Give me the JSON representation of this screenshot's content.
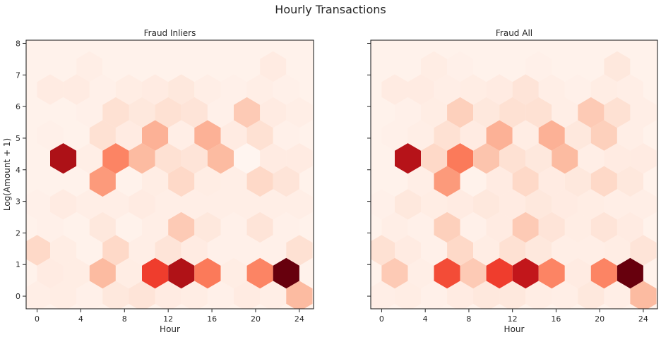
{
  "suptitle": "Hourly Transactions",
  "chart_data": [
    {
      "type": "heatmap",
      "subtype": "hexbin",
      "title": "Fraud Inliers",
      "xlabel": "Hour",
      "ylabel": "Log(Amount + 1)",
      "xlim": [
        -1,
        25.3
      ],
      "ylim": [
        -0.4,
        8.1
      ],
      "xticks": [
        0,
        4,
        8,
        12,
        16,
        20,
        24
      ],
      "yticks": [
        0,
        1,
        2,
        3,
        4,
        5,
        6,
        7,
        8
      ],
      "colormap": "Reds",
      "grid": false,
      "hex_size": 1.2,
      "value_scale": "relative intensity 0-1",
      "cells": [
        {
          "x": 0.0,
          "y": 0,
          "v": 0.04
        },
        {
          "x": 2.4,
          "y": 0,
          "v": 0.05
        },
        {
          "x": 4.8,
          "y": 0,
          "v": 0.03
        },
        {
          "x": 7.2,
          "y": 0,
          "v": 0.08
        },
        {
          "x": 9.6,
          "y": 0,
          "v": 0.1
        },
        {
          "x": 12.0,
          "y": 0,
          "v": 0.06
        },
        {
          "x": 14.4,
          "y": 0,
          "v": 0.05
        },
        {
          "x": 16.8,
          "y": 0,
          "v": 0.03
        },
        {
          "x": 19.2,
          "y": 0,
          "v": 0.06
        },
        {
          "x": 21.6,
          "y": 0,
          "v": 0.04
        },
        {
          "x": 24.0,
          "y": 0,
          "v": 0.25
        },
        {
          "x": 1.2,
          "y": 1,
          "v": 0.06
        },
        {
          "x": 3.6,
          "y": 1,
          "v": 0.05
        },
        {
          "x": 6.0,
          "y": 1,
          "v": 0.25
        },
        {
          "x": 8.4,
          "y": 1,
          "v": 0.05
        },
        {
          "x": 10.8,
          "y": 1,
          "v": 0.62
        },
        {
          "x": 13.2,
          "y": 1,
          "v": 0.84
        },
        {
          "x": 15.6,
          "y": 1,
          "v": 0.45
        },
        {
          "x": 18.0,
          "y": 1,
          "v": 0.05
        },
        {
          "x": 20.4,
          "y": 1,
          "v": 0.42
        },
        {
          "x": 22.8,
          "y": 1,
          "v": 1.0
        },
        {
          "x": 0.0,
          "y": 2,
          "v": 0.15
        },
        {
          "x": 2.4,
          "y": 2,
          "v": 0.05
        },
        {
          "x": 4.8,
          "y": 2,
          "v": 0.02
        },
        {
          "x": 7.2,
          "y": 2,
          "v": 0.15
        },
        {
          "x": 9.6,
          "y": 2,
          "v": 0.04
        },
        {
          "x": 12.0,
          "y": 2,
          "v": 0.1
        },
        {
          "x": 14.4,
          "y": 2,
          "v": 0.06
        },
        {
          "x": 16.8,
          "y": 2,
          "v": 0.03
        },
        {
          "x": 19.2,
          "y": 2,
          "v": 0.03
        },
        {
          "x": 21.6,
          "y": 2,
          "v": 0.03
        },
        {
          "x": 24.0,
          "y": 2,
          "v": 0.12
        },
        {
          "x": 1.2,
          "y": 3,
          "v": 0.03
        },
        {
          "x": 3.6,
          "y": 3,
          "v": 0.02
        },
        {
          "x": 6.0,
          "y": 3,
          "v": 0.08
        },
        {
          "x": 8.4,
          "y": 3,
          "v": 0.02
        },
        {
          "x": 10.8,
          "y": 3,
          "v": 0.04
        },
        {
          "x": 13.2,
          "y": 3,
          "v": 0.2
        },
        {
          "x": 15.6,
          "y": 3,
          "v": 0.08
        },
        {
          "x": 18.0,
          "y": 3,
          "v": 0.03
        },
        {
          "x": 20.4,
          "y": 3,
          "v": 0.1
        },
        {
          "x": 22.8,
          "y": 3,
          "v": 0.03
        },
        {
          "x": 0.0,
          "y": 4,
          "v": 0.03
        },
        {
          "x": 2.4,
          "y": 4,
          "v": 0.06
        },
        {
          "x": 4.8,
          "y": 4,
          "v": 0.04
        },
        {
          "x": 7.2,
          "y": 4,
          "v": 0.04
        },
        {
          "x": 9.6,
          "y": 4,
          "v": 0.06
        },
        {
          "x": 12.0,
          "y": 4,
          "v": 0.04
        },
        {
          "x": 14.4,
          "y": 4,
          "v": 0.04
        },
        {
          "x": 16.8,
          "y": 4,
          "v": 0.04
        },
        {
          "x": 19.2,
          "y": 4,
          "v": 0.04
        },
        {
          "x": 21.6,
          "y": 4,
          "v": 0.04
        },
        {
          "x": 24.0,
          "y": 4,
          "v": 0.04
        },
        {
          "x": 1.2,
          "y": 5,
          "v": 0.02
        },
        {
          "x": 3.6,
          "y": 5,
          "v": 0.02
        },
        {
          "x": 6.0,
          "y": 5,
          "v": 0.35
        },
        {
          "x": 8.4,
          "y": 5,
          "v": 0.02
        },
        {
          "x": 10.8,
          "y": 5,
          "v": 0.05
        },
        {
          "x": 13.2,
          "y": 5,
          "v": 0.15
        },
        {
          "x": 15.6,
          "y": 5,
          "v": 0.05
        },
        {
          "x": 18.0,
          "y": 5,
          "v": 0.04
        },
        {
          "x": 20.4,
          "y": 5,
          "v": 0.15
        },
        {
          "x": 22.8,
          "y": 5,
          "v": 0.1
        },
        {
          "x": 0.0,
          "y": 6,
          "v": 0.02
        },
        {
          "x": 2.4,
          "y": 6,
          "v": 0.85
        },
        {
          "x": 4.8,
          "y": 6,
          "v": 0.04
        },
        {
          "x": 7.2,
          "y": 6,
          "v": 0.42
        },
        {
          "x": 9.6,
          "y": 6,
          "v": 0.25
        },
        {
          "x": 12.0,
          "y": 6,
          "v": 0.12
        },
        {
          "x": 14.4,
          "y": 6,
          "v": 0.1
        },
        {
          "x": 16.8,
          "y": 6,
          "v": 0.25
        },
        {
          "x": 19.2,
          "y": 6,
          "v": 0.0
        },
        {
          "x": 21.6,
          "y": 6,
          "v": 0.06
        },
        {
          "x": 24.0,
          "y": 6,
          "v": 0.06
        },
        {
          "x": 1.2,
          "y": 7,
          "v": 0.03
        },
        {
          "x": 3.6,
          "y": 7,
          "v": 0.02
        },
        {
          "x": 6.0,
          "y": 7,
          "v": 0.12
        },
        {
          "x": 8.4,
          "y": 7,
          "v": 0.06
        },
        {
          "x": 10.8,
          "y": 7,
          "v": 0.28
        },
        {
          "x": 13.2,
          "y": 7,
          "v": 0.04
        },
        {
          "x": 15.6,
          "y": 7,
          "v": 0.28
        },
        {
          "x": 18.0,
          "y": 7,
          "v": 0.06
        },
        {
          "x": 20.4,
          "y": 7,
          "v": 0.12
        },
        {
          "x": 22.8,
          "y": 7,
          "v": 0.03
        },
        {
          "x": 0.0,
          "y": 8,
          "v": 0.02
        },
        {
          "x": 2.4,
          "y": 8,
          "v": 0.02
        },
        {
          "x": 4.8,
          "y": 8,
          "v": 0.03
        },
        {
          "x": 7.2,
          "y": 8,
          "v": 0.12
        },
        {
          "x": 9.6,
          "y": 8,
          "v": 0.08
        },
        {
          "x": 12.0,
          "y": 8,
          "v": 0.12
        },
        {
          "x": 14.4,
          "y": 8,
          "v": 0.1
        },
        {
          "x": 16.8,
          "y": 8,
          "v": 0.03
        },
        {
          "x": 19.2,
          "y": 8,
          "v": 0.2
        },
        {
          "x": 21.6,
          "y": 8,
          "v": 0.06
        },
        {
          "x": 24.0,
          "y": 8,
          "v": 0.04
        },
        {
          "x": 1.2,
          "y": 9,
          "v": 0.06
        },
        {
          "x": 3.6,
          "y": 9,
          "v": 0.06
        },
        {
          "x": 6.0,
          "y": 9,
          "v": 0.03
        },
        {
          "x": 8.4,
          "y": 9,
          "v": 0.05
        },
        {
          "x": 10.8,
          "y": 9,
          "v": 0.06
        },
        {
          "x": 13.2,
          "y": 9,
          "v": 0.08
        },
        {
          "x": 15.6,
          "y": 9,
          "v": 0.04
        },
        {
          "x": 18.0,
          "y": 9,
          "v": 0.03
        },
        {
          "x": 20.4,
          "y": 9,
          "v": 0.04
        },
        {
          "x": 22.8,
          "y": 9,
          "v": 0.03
        },
        {
          "x": 0.0,
          "y": 10,
          "v": 0.02
        },
        {
          "x": 2.4,
          "y": 10,
          "v": 0.02
        },
        {
          "x": 4.8,
          "y": 10,
          "v": 0.04
        },
        {
          "x": 7.2,
          "y": 10,
          "v": 0.02
        },
        {
          "x": 9.6,
          "y": 10,
          "v": 0.02
        },
        {
          "x": 12.0,
          "y": 10,
          "v": 0.02
        },
        {
          "x": 14.4,
          "y": 10,
          "v": 0.02
        },
        {
          "x": 16.8,
          "y": 10,
          "v": 0.02
        },
        {
          "x": 19.2,
          "y": 10,
          "v": 0.02
        },
        {
          "x": 21.6,
          "y": 10,
          "v": 0.06
        },
        {
          "x": 24.0,
          "y": 10,
          "v": 0.02
        }
      ]
    },
    {
      "type": "heatmap",
      "subtype": "hexbin",
      "title": "Fraud All",
      "xlabel": "Hour",
      "ylabel": "",
      "xlim": [
        -1,
        25.3
      ],
      "ylim": [
        -0.4,
        8.1
      ],
      "xticks": [
        0,
        4,
        8,
        12,
        16,
        20,
        24
      ],
      "yticks": [
        0,
        1,
        2,
        3,
        4,
        5,
        6,
        7,
        8
      ],
      "colormap": "Reds",
      "grid": false,
      "hex_size": 1.2,
      "value_scale": "relative intensity 0-1",
      "cells": [
        {
          "x": 0.0,
          "y": 0,
          "v": 0.04
        },
        {
          "x": 2.4,
          "y": 0,
          "v": 0.05
        },
        {
          "x": 4.8,
          "y": 0,
          "v": 0.03
        },
        {
          "x": 7.2,
          "y": 0,
          "v": 0.06
        },
        {
          "x": 9.6,
          "y": 0,
          "v": 0.08
        },
        {
          "x": 12.0,
          "y": 0,
          "v": 0.08
        },
        {
          "x": 14.4,
          "y": 0,
          "v": 0.05
        },
        {
          "x": 16.8,
          "y": 0,
          "v": 0.04
        },
        {
          "x": 19.2,
          "y": 0,
          "v": 0.08
        },
        {
          "x": 21.6,
          "y": 0,
          "v": 0.04
        },
        {
          "x": 24.0,
          "y": 0,
          "v": 0.25
        },
        {
          "x": 1.2,
          "y": 1,
          "v": 0.2
        },
        {
          "x": 3.6,
          "y": 1,
          "v": 0.04
        },
        {
          "x": 6.0,
          "y": 1,
          "v": 0.58
        },
        {
          "x": 8.4,
          "y": 1,
          "v": 0.2
        },
        {
          "x": 10.8,
          "y": 1,
          "v": 0.62
        },
        {
          "x": 13.2,
          "y": 1,
          "v": 0.78
        },
        {
          "x": 15.6,
          "y": 1,
          "v": 0.42
        },
        {
          "x": 18.0,
          "y": 1,
          "v": 0.06
        },
        {
          "x": 20.4,
          "y": 1,
          "v": 0.42
        },
        {
          "x": 22.8,
          "y": 1,
          "v": 1.0
        },
        {
          "x": 0.0,
          "y": 2,
          "v": 0.12
        },
        {
          "x": 2.4,
          "y": 2,
          "v": 0.06
        },
        {
          "x": 4.8,
          "y": 2,
          "v": 0.03
        },
        {
          "x": 7.2,
          "y": 2,
          "v": 0.15
        },
        {
          "x": 9.6,
          "y": 2,
          "v": 0.05
        },
        {
          "x": 12.0,
          "y": 2,
          "v": 0.12
        },
        {
          "x": 14.4,
          "y": 2,
          "v": 0.08
        },
        {
          "x": 16.8,
          "y": 2,
          "v": 0.04
        },
        {
          "x": 19.2,
          "y": 2,
          "v": 0.04
        },
        {
          "x": 21.6,
          "y": 2,
          "v": 0.05
        },
        {
          "x": 24.0,
          "y": 2,
          "v": 0.1
        },
        {
          "x": 1.2,
          "y": 3,
          "v": 0.04
        },
        {
          "x": 3.6,
          "y": 3,
          "v": 0.03
        },
        {
          "x": 6.0,
          "y": 3,
          "v": 0.18
        },
        {
          "x": 8.4,
          "y": 3,
          "v": 0.03
        },
        {
          "x": 10.8,
          "y": 3,
          "v": 0.06
        },
        {
          "x": 13.2,
          "y": 3,
          "v": 0.2
        },
        {
          "x": 15.6,
          "y": 3,
          "v": 0.1
        },
        {
          "x": 18.0,
          "y": 3,
          "v": 0.05
        },
        {
          "x": 20.4,
          "y": 3,
          "v": 0.1
        },
        {
          "x": 22.8,
          "y": 3,
          "v": 0.06
        },
        {
          "x": 0.0,
          "y": 4,
          "v": 0.03
        },
        {
          "x": 2.4,
          "y": 4,
          "v": 0.08
        },
        {
          "x": 4.8,
          "y": 4,
          "v": 0.05
        },
        {
          "x": 7.2,
          "y": 4,
          "v": 0.06
        },
        {
          "x": 9.6,
          "y": 4,
          "v": 0.08
        },
        {
          "x": 12.0,
          "y": 4,
          "v": 0.06
        },
        {
          "x": 14.4,
          "y": 4,
          "v": 0.08
        },
        {
          "x": 16.8,
          "y": 4,
          "v": 0.06
        },
        {
          "x": 19.2,
          "y": 4,
          "v": 0.05
        },
        {
          "x": 21.6,
          "y": 4,
          "v": 0.04
        },
        {
          "x": 24.0,
          "y": 4,
          "v": 0.04
        },
        {
          "x": 1.2,
          "y": 5,
          "v": 0.02
        },
        {
          "x": 3.6,
          "y": 5,
          "v": 0.04
        },
        {
          "x": 6.0,
          "y": 5,
          "v": 0.35
        },
        {
          "x": 8.4,
          "y": 5,
          "v": 0.02
        },
        {
          "x": 10.8,
          "y": 5,
          "v": 0.06
        },
        {
          "x": 13.2,
          "y": 5,
          "v": 0.15
        },
        {
          "x": 15.6,
          "y": 5,
          "v": 0.06
        },
        {
          "x": 18.0,
          "y": 5,
          "v": 0.08
        },
        {
          "x": 20.4,
          "y": 5,
          "v": 0.15
        },
        {
          "x": 22.8,
          "y": 5,
          "v": 0.08
        },
        {
          "x": 0.0,
          "y": 6,
          "v": 0.02
        },
        {
          "x": 2.4,
          "y": 6,
          "v": 0.82
        },
        {
          "x": 4.8,
          "y": 6,
          "v": 0.15
        },
        {
          "x": 7.2,
          "y": 6,
          "v": 0.45
        },
        {
          "x": 9.6,
          "y": 6,
          "v": 0.22
        },
        {
          "x": 12.0,
          "y": 6,
          "v": 0.12
        },
        {
          "x": 14.4,
          "y": 6,
          "v": 0.08
        },
        {
          "x": 16.8,
          "y": 6,
          "v": 0.25
        },
        {
          "x": 19.2,
          "y": 6,
          "v": 0.04
        },
        {
          "x": 21.6,
          "y": 6,
          "v": 0.06
        },
        {
          "x": 24.0,
          "y": 6,
          "v": 0.06
        },
        {
          "x": 1.2,
          "y": 7,
          "v": 0.03
        },
        {
          "x": 3.6,
          "y": 7,
          "v": 0.04
        },
        {
          "x": 6.0,
          "y": 7,
          "v": 0.12
        },
        {
          "x": 8.4,
          "y": 7,
          "v": 0.06
        },
        {
          "x": 10.8,
          "y": 7,
          "v": 0.28
        },
        {
          "x": 13.2,
          "y": 7,
          "v": 0.05
        },
        {
          "x": 15.6,
          "y": 7,
          "v": 0.28
        },
        {
          "x": 18.0,
          "y": 7,
          "v": 0.08
        },
        {
          "x": 20.4,
          "y": 7,
          "v": 0.18
        },
        {
          "x": 22.8,
          "y": 7,
          "v": 0.04
        },
        {
          "x": 0.0,
          "y": 8,
          "v": 0.02
        },
        {
          "x": 2.4,
          "y": 8,
          "v": 0.03
        },
        {
          "x": 4.8,
          "y": 8,
          "v": 0.05
        },
        {
          "x": 7.2,
          "y": 8,
          "v": 0.18
        },
        {
          "x": 9.6,
          "y": 8,
          "v": 0.08
        },
        {
          "x": 12.0,
          "y": 8,
          "v": 0.12
        },
        {
          "x": 14.4,
          "y": 8,
          "v": 0.12
        },
        {
          "x": 16.8,
          "y": 8,
          "v": 0.04
        },
        {
          "x": 19.2,
          "y": 8,
          "v": 0.2
        },
        {
          "x": 21.6,
          "y": 8,
          "v": 0.12
        },
        {
          "x": 24.0,
          "y": 8,
          "v": 0.04
        },
        {
          "x": 1.2,
          "y": 9,
          "v": 0.06
        },
        {
          "x": 3.6,
          "y": 9,
          "v": 0.06
        },
        {
          "x": 6.0,
          "y": 9,
          "v": 0.04
        },
        {
          "x": 8.4,
          "y": 9,
          "v": 0.05
        },
        {
          "x": 10.8,
          "y": 9,
          "v": 0.06
        },
        {
          "x": 13.2,
          "y": 9,
          "v": 0.1
        },
        {
          "x": 15.6,
          "y": 9,
          "v": 0.04
        },
        {
          "x": 18.0,
          "y": 9,
          "v": 0.03
        },
        {
          "x": 20.4,
          "y": 9,
          "v": 0.05
        },
        {
          "x": 22.8,
          "y": 9,
          "v": 0.04
        },
        {
          "x": 0.0,
          "y": 10,
          "v": 0.02
        },
        {
          "x": 2.4,
          "y": 10,
          "v": 0.02
        },
        {
          "x": 4.8,
          "y": 10,
          "v": 0.05
        },
        {
          "x": 7.2,
          "y": 10,
          "v": 0.03
        },
        {
          "x": 9.6,
          "y": 10,
          "v": 0.02
        },
        {
          "x": 12.0,
          "y": 10,
          "v": 0.02
        },
        {
          "x": 14.4,
          "y": 10,
          "v": 0.03
        },
        {
          "x": 16.8,
          "y": 10,
          "v": 0.02
        },
        {
          "x": 19.2,
          "y": 10,
          "v": 0.02
        },
        {
          "x": 21.6,
          "y": 10,
          "v": 0.08
        },
        {
          "x": 24.0,
          "y": 10,
          "v": 0.02
        }
      ]
    }
  ]
}
